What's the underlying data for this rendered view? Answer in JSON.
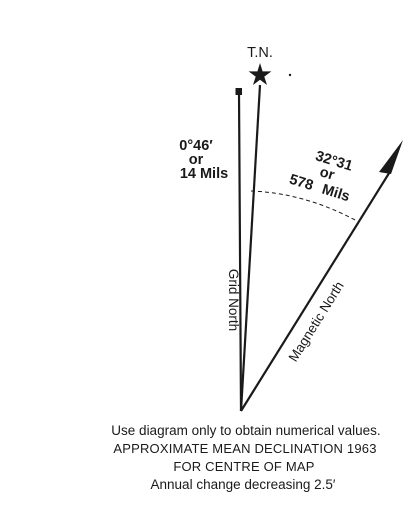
{
  "true_north": {
    "label": "T.N.",
    "symbol": "star-icon"
  },
  "grid_north": {
    "label": "Grid North",
    "angle_from_true_north": {
      "degrees": "0°46′",
      "or": "or",
      "mils": "14 Mils"
    }
  },
  "magnetic_north": {
    "label": "Magnetic North",
    "angle_from_true_north": {
      "degrees": "32°31",
      "or": "or",
      "mils": "578 Mils"
    }
  },
  "caption": {
    "line1": "Use diagram only to obtain numerical values.",
    "line2": "APPROXIMATE MEAN DECLINATION 1963",
    "line3": "FOR CENTRE OF MAP",
    "line4": "Annual change decreasing 2.5′"
  },
  "colors": {
    "ink": "#1a1a1a",
    "background": "#ffffff"
  }
}
